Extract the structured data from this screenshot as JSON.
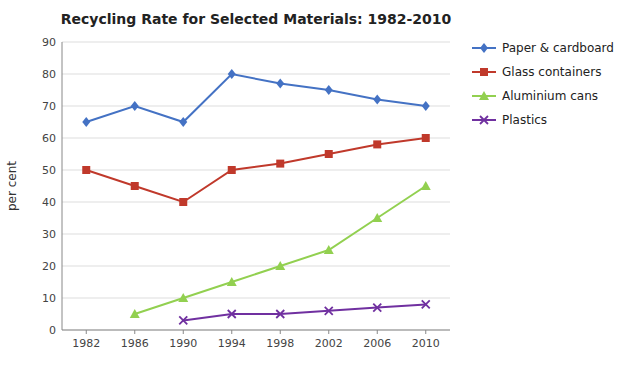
{
  "chart_data": {
    "type": "line",
    "title": "Recycling Rate for Selected Materials: 1982-2010",
    "ylabel": "per cent",
    "x": [
      1982,
      1986,
      1990,
      1994,
      1998,
      2002,
      2006,
      2010
    ],
    "xlim": [
      1980,
      2012
    ],
    "xticks": [
      1982,
      1986,
      1990,
      1994,
      1998,
      2002,
      2006,
      2010
    ],
    "ylim": [
      0,
      90
    ],
    "yticks": [
      0,
      10,
      20,
      30,
      40,
      50,
      60,
      70,
      80,
      90
    ],
    "grid": true,
    "legend": "right",
    "series": [
      {
        "name": "Paper & cardboard",
        "color": "#4472C4",
        "marker": "diamond",
        "values": [
          65,
          70,
          65,
          80,
          77,
          75,
          72,
          70
        ]
      },
      {
        "name": "Glass containers",
        "color": "#C0392B",
        "marker": "square",
        "values": [
          50,
          45,
          40,
          50,
          52,
          55,
          58,
          60
        ]
      },
      {
        "name": "Aluminium cans",
        "color": "#92D050",
        "marker": "triangle",
        "values": [
          null,
          5,
          10,
          15,
          20,
          25,
          35,
          45
        ]
      },
      {
        "name": "Plastics",
        "color": "#7030A0",
        "marker": "x",
        "values": [
          null,
          null,
          3,
          5,
          5,
          6,
          7,
          8
        ]
      }
    ]
  }
}
